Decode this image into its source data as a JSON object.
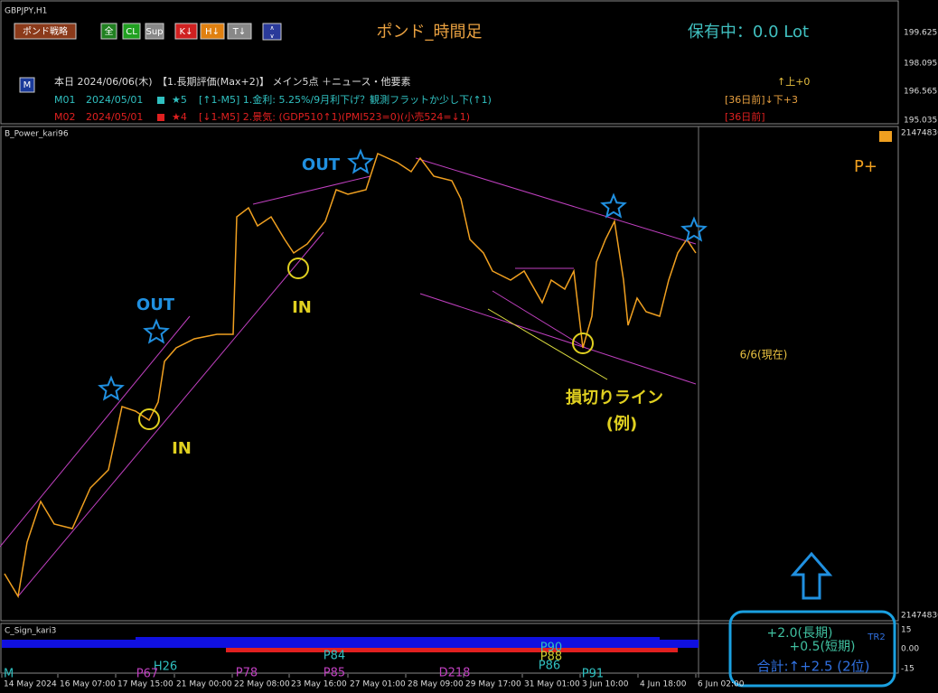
{
  "header": {
    "symbol": "GBPJPY,H1",
    "strategy_button": "ポンド戦略",
    "buttons": [
      "全",
      "CL",
      "Sup",
      "K↓",
      "H↓",
      "T↓"
    ],
    "title": "ポンド_時間足",
    "position": "保有中：0.0 Lot"
  },
  "top_axis_labels": [
    "199.625",
    "198.095",
    "196.565",
    "195.035"
  ],
  "today_row": {
    "icon": "M",
    "text": "本日 2024/06/06(木)　【1.長期評価(Max+2)】 メイン5点 ＋ニュース・他要素",
    "right": "↑上+0"
  },
  "rows": [
    {
      "id": "M01",
      "date": "2024/05/01",
      "score": "★5",
      "text": "[↑1-M5] 1.金利: 5.25%/9月利下げ？観測フラットか少し下(↑1)",
      "right": "[36日前]↓下+3"
    },
    {
      "id": "M02",
      "date": "2024/05/01",
      "score": "★4",
      "text": "[↓1-M5] 2.景気: (GDP510↑1)(PMI523=0)(小売524=↓1)",
      "right": "[36日前]"
    }
  ],
  "main_panel": {
    "name": "B_Power_kari96",
    "axis_labels": [
      "21474836",
      "21474836"
    ],
    "annotations": {
      "out1": "OUT",
      "out2": "OUT",
      "in1": "IN",
      "in2": "IN",
      "stop_line": "損切りライン",
      "example": "(例)",
      "now": "6/6(現在)",
      "signal": "P+"
    }
  },
  "sub_panel": {
    "name": "C_Sign_kari3",
    "axis_labels": [
      "15",
      "0.00",
      "-15"
    ],
    "markers": [
      "H26",
      "P67",
      "P78",
      "P84",
      "P85",
      "D218",
      "P90",
      "P88",
      "P86",
      "P91",
      "M"
    ]
  },
  "summary": {
    "long": "+2.0(長期)",
    "short": "+0.5(短期)",
    "total": "合計:↑+2.5 (2位)",
    "tr": "TR2"
  },
  "x_axis_labels": [
    "14 May 2024",
    "16 May 07:00",
    "17 May 15:00",
    "21 May 00:00",
    "22 May 08:00",
    "23 May 16:00",
    "27 May 01:00",
    "28 May 09:00",
    "29 May 17:00",
    "31 May 01:00",
    "3 Jun 10:00",
    "4 Jun 18:00",
    "6 Jun 02:00"
  ]
}
